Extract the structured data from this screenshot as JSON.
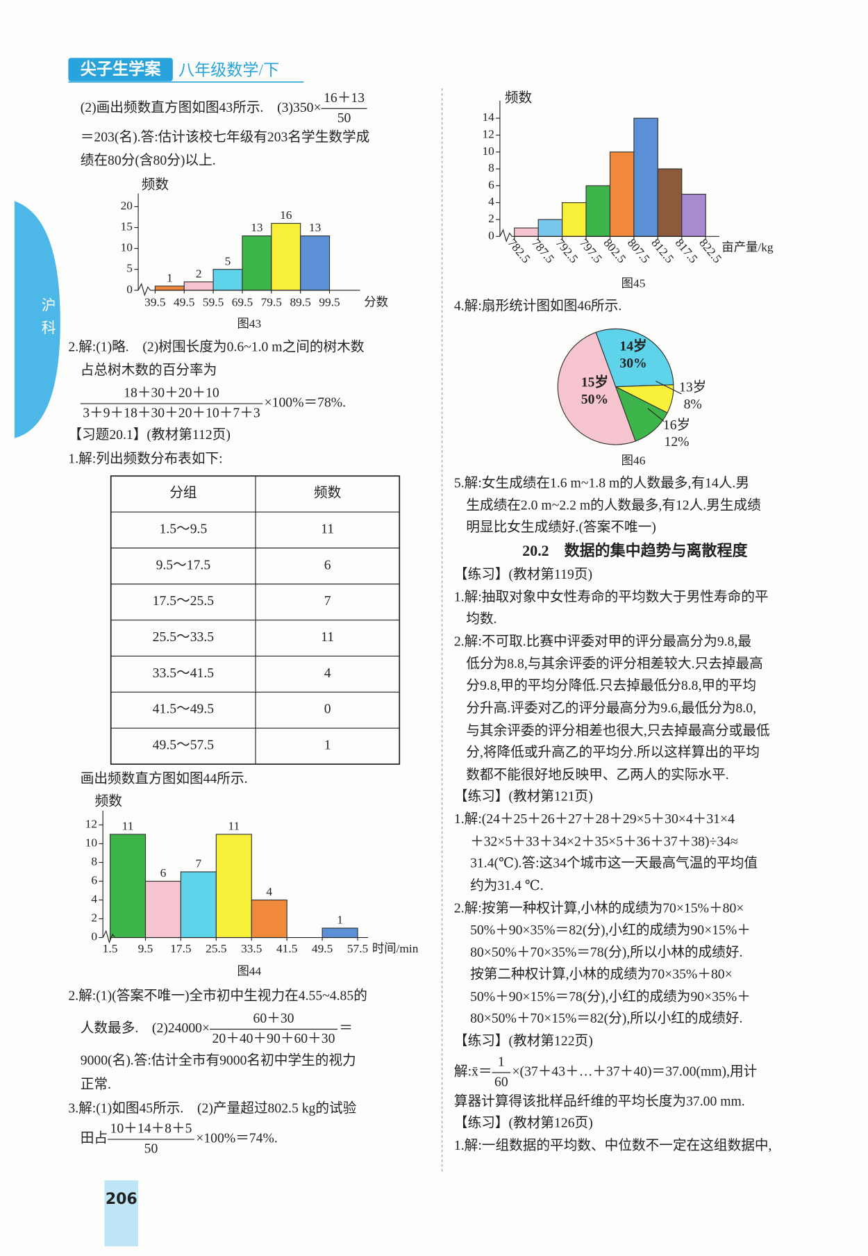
{
  "header": {
    "brand": "尖子生学案",
    "subtitle": "八年级数学/下",
    "side_tab": "沪科"
  },
  "left_lines": [
    [
      "(2)画出频数直方图如图43所示.　(3)350×",
      {
        "num": "16＋13",
        "den": "50"
      }
    ],
    [
      "＝203(名).答:估计该校七年级有203名学生数学成"
    ],
    [
      "绩在80分(含80分)以上."
    ],
    [
      "2.解:(1)略.　(2)树围长度为0.6~1.0 m之间的树木数"
    ],
    [
      "占总树木数的百分率为"
    ],
    [
      {
        "num": "18＋30＋20＋10",
        "den": "3＋9＋18＋30＋20＋10＋7＋3"
      },
      "×100%＝78%."
    ],
    [
      "【习题20.1】(教材第112页)"
    ],
    [
      "1.解:列出频数分布表如下:"
    ],
    [
      "画出频数直方图如图44所示."
    ],
    [
      "2.解:(1)(答案不唯一)全市初中生视力在4.55~4.85的"
    ],
    [
      "人数最多.　(2)24000×",
      {
        "num": "60＋30",
        "den": "20＋40＋90＋60＋30"
      },
      "＝"
    ],
    [
      "9000(名).答:估计全市有9000名初中学生的视力"
    ],
    [
      "正常."
    ],
    [
      "3.解:(1)如图45所示.　(2)产量超过802.5 kg的试验"
    ],
    [
      "田占",
      {
        "num": "10＋14＋8＋5",
        "den": "50"
      },
      "×100%＝74%."
    ]
  ],
  "table": {
    "header": [
      "分组",
      "频数"
    ],
    "rows": [
      [
        "1.5～9.5",
        11
      ],
      [
        "9.5～17.5",
        6
      ],
      [
        "17.5～25.5",
        7
      ],
      [
        "25.5～33.5",
        11
      ],
      [
        "33.5～41.5",
        4
      ],
      [
        "41.5～49.5",
        0
      ],
      [
        "49.5～57.5",
        1
      ]
    ]
  },
  "chart_data": [
    {
      "type": "histogram",
      "caption": "图43",
      "y_label": "频数",
      "x_label": "分数",
      "bins": [
        39.5,
        49.5,
        59.5,
        69.5,
        79.5,
        89.5,
        99.5
      ],
      "values": [
        1,
        2,
        5,
        13,
        16,
        13
      ],
      "colors": [
        "#f08a3a",
        "#f6c5cf",
        "#5fd3ea",
        "#3db54a",
        "#f9f03a",
        "#5b8fd6"
      ],
      "ylim": [
        0,
        22
      ],
      "yticks": [
        0,
        5,
        10,
        15,
        20
      ],
      "data_labels": true
    },
    {
      "type": "histogram",
      "caption": "图44",
      "y_label": "频数",
      "x_label": "时间/min",
      "bins": [
        1.5,
        9.5,
        17.5,
        25.5,
        33.5,
        41.5,
        49.5,
        57.5
      ],
      "values": [
        11,
        6,
        7,
        11,
        4,
        0,
        1
      ],
      "colors": [
        "#3db54a",
        "#f6c5cf",
        "#5fd3ea",
        "#f9f03a",
        "#f08a3a",
        "#aaaaaa",
        "#5b8fd6"
      ],
      "ylim": [
        0,
        13
      ],
      "yticks": [
        0,
        2,
        4,
        6,
        8,
        10,
        12
      ],
      "data_labels": true
    },
    {
      "type": "histogram",
      "caption": "图45",
      "y_label": "频数",
      "x_label": "亩产量/kg",
      "bins": [
        782.5,
        787.5,
        792.5,
        797.5,
        802.5,
        807.5,
        812.5,
        817.5,
        822.5
      ],
      "values": [
        1,
        2,
        4,
        6,
        10,
        14,
        8,
        5
      ],
      "colors": [
        "#f6c5cf",
        "#79c7ec",
        "#f9f03a",
        "#3db54a",
        "#f08a3a",
        "#5b8fd6",
        "#8d5a3b",
        "#a88ad0"
      ],
      "ylim": [
        0,
        15.5
      ],
      "yticks": [
        0,
        2,
        4,
        6,
        8,
        10,
        12,
        14
      ],
      "data_labels": false
    },
    {
      "type": "pie",
      "caption": "图46",
      "categories": [
        "14岁",
        "13岁",
        "16岁",
        "15岁"
      ],
      "values": [
        30,
        8,
        12,
        50
      ],
      "value_labels": [
        "30%",
        "8%",
        "12%",
        "50%"
      ],
      "colors": [
        "#5fd3ea",
        "#f9f03a",
        "#3db54a",
        "#f6c5cf"
      ]
    }
  ],
  "right_lines": [
    [
      "4.解:扇形统计图如图46所示."
    ],
    [
      "5.解:女生成绩在1.6 m~1.8 m的人数最多,有14人.男"
    ],
    [
      "生成绩在2.0 m~2.2 m的人数最多,有12人.男生成绩"
    ],
    [
      "明显比女生成绩好.(答案不唯一)"
    ],
    [
      "【练习】(教材第119页)"
    ],
    [
      "1.解:抽取对象中女性寿命的平均数大于男性寿命的平"
    ],
    [
      "均数."
    ],
    [
      "2.解:不可取.比赛中评委对甲的评分最高分为9.8,最"
    ],
    [
      "低分为8.8,与其余评委的评分相差较大.只去掉最高"
    ],
    [
      "分9.8,甲的平均分降低.只去掉最低分8.8,甲的平均"
    ],
    [
      "分升高.评委对乙的评分最高分为9.6,最低分为8.0,"
    ],
    [
      "与其余评委的评分相差也很大,只去掉最高分或最低"
    ],
    [
      "分,将降低或升高乙的平均分.所以这样算出的平均"
    ],
    [
      "数都不能很好地反映甲、乙两人的实际水平."
    ],
    [
      "【练习】(教材第121页)"
    ],
    [
      "1.解:(24＋25＋26＋27＋28＋29×5＋30×4＋31×4"
    ],
    [
      "＋32×5＋33＋34×2＋35×5＋36＋37＋38)÷34≈"
    ],
    [
      "31.4(℃).答:这34个城市这一天最高气温的平均值"
    ],
    [
      "约为31.4 ℃."
    ],
    [
      "2.解:按第一种权计算,小林的成绩为70×15%＋80×"
    ],
    [
      "50%＋90×35%＝82(分),小红的成绩为90×15%＋"
    ],
    [
      "80×50%＋70×35%＝78(分),所以小林的成绩好."
    ],
    [
      "按第二种权计算,小林的成绩为70×35%＋80×"
    ],
    [
      "50%＋90×15%＝78(分),小红的成绩为90×35%＋"
    ],
    [
      "80×50%＋70×15%＝82(分),所以小红的成绩好."
    ],
    [
      "【练习】(教材第122页)"
    ],
    [
      "解:x̄＝",
      {
        "num": "1",
        "den": "60"
      },
      "×(37＋43＋…＋37＋40)＝37.00(mm),用计"
    ],
    [
      "算器计算得该批样品纤维的平均长度为37.00 mm."
    ],
    [
      "【练习】(教材第126页)"
    ],
    [
      "1.解:一组数据的平均数、中位数不一定在这组数据中,"
    ]
  ],
  "section_heading": "20.2　数据的集中趋势与离散程度",
  "page_number": "206"
}
